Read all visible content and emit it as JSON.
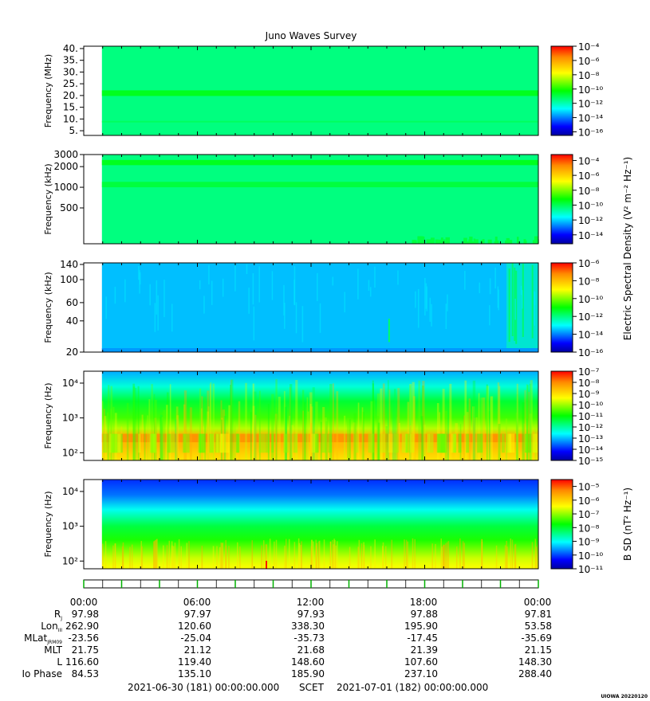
{
  "title": "Juno Waves Survey",
  "footer_left": "2021-06-30 (181) 00:00:00.000",
  "footer_mid": "SCET",
  "footer_right": "2021-07-01 (182) 00:00:00.000",
  "corner_label": "UIOWA 20220120",
  "spectral_density_label": "Electric Spectral Density (V² m⁻² Hz⁻¹)",
  "chart_data": [
    {
      "type": "heatmap",
      "name": "Panel 1 - high frequency receiver",
      "ylabel": "Frequency (MHz)",
      "yscale": "linear",
      "ylim": [
        3,
        41
      ],
      "yticks": [
        {
          "v": 40,
          "t": "40."
        },
        {
          "v": 35,
          "t": "35."
        },
        {
          "v": 30,
          "t": "30."
        },
        {
          "v": 25,
          "t": "25."
        },
        {
          "v": 20,
          "t": "20."
        },
        {
          "v": 15,
          "t": "15."
        },
        {
          "v": 10,
          "t": "10."
        },
        {
          "v": 5,
          "t": "5."
        }
      ],
      "colorbar": {
        "range_exp": [
          -16.5,
          -4
        ],
        "ticks": [
          {
            "e": -4,
            "t": "10⁻⁴"
          },
          {
            "e": -6,
            "t": "10⁻⁶"
          },
          {
            "e": -8,
            "t": "10⁻⁸"
          },
          {
            "e": -10,
            "t": "10⁻¹⁰"
          },
          {
            "e": -12,
            "t": "10⁻¹²"
          },
          {
            "e": -14,
            "t": "10⁻¹⁴"
          },
          {
            "e": -16,
            "t": "10⁻¹⁶"
          }
        ]
      },
      "data_start_fraction": 0.04,
      "features": [
        {
          "kind": "background",
          "level": 0.4
        },
        {
          "kind": "band",
          "from": 19.8,
          "to": 22.2,
          "level": 0.49
        },
        {
          "kind": "band",
          "from": 8.5,
          "to": 9.2,
          "level": 0.43
        }
      ]
    },
    {
      "type": "heatmap",
      "name": "Panel 2 - low frequency receiver high band",
      "ylabel": "Frequency (kHz)",
      "yscale": "log",
      "ylim": [
        150,
        3000
      ],
      "yticks": [
        {
          "v": 3000,
          "t": "3000"
        },
        {
          "v": 2000,
          "t": "2000"
        },
        {
          "v": 1000,
          "t": "1000"
        },
        {
          "v": 500,
          "t": "500"
        }
      ],
      "colorbar": {
        "range_exp": [
          -15.2,
          -3.2
        ],
        "label": "Electric Spectral Density",
        "ticks": [
          {
            "e": -4,
            "t": "10⁻⁴"
          },
          {
            "e": -6,
            "t": "10⁻⁶"
          },
          {
            "e": -8,
            "t": "10⁻⁸"
          },
          {
            "e": -10,
            "t": "10⁻¹⁰"
          },
          {
            "e": -12,
            "t": "10⁻¹²"
          },
          {
            "e": -14,
            "t": "10⁻¹⁴"
          }
        ]
      },
      "data_start_fraction": 0.04,
      "features": [
        {
          "kind": "background",
          "level": 0.4
        },
        {
          "kind": "band",
          "from": 2100,
          "to": 2500,
          "level": 0.49
        },
        {
          "kind": "band",
          "from": 1000,
          "to": 1200,
          "level": 0.46
        },
        {
          "kind": "floor_noise",
          "from": 150,
          "to": 200,
          "level": 0.45,
          "start": 0.72
        }
      ]
    },
    {
      "type": "heatmap",
      "name": "Panel 3 - low frequency receiver low band",
      "ylabel": "Frequency (kHz)",
      "yscale": "log",
      "ylim": [
        20,
        145
      ],
      "yticks": [
        {
          "v": 140,
          "t": "140"
        },
        {
          "v": 100,
          "t": "100"
        },
        {
          "v": 60,
          "t": "60"
        },
        {
          "v": 40,
          "t": "40"
        },
        {
          "v": 20,
          "t": "20"
        }
      ],
      "colorbar": {
        "range_exp": [
          -16,
          -6
        ],
        "ticks": [
          {
            "e": -6,
            "t": "10⁻⁶"
          },
          {
            "e": -8,
            "t": "10⁻⁸"
          },
          {
            "e": -10,
            "t": "10⁻¹⁰"
          },
          {
            "e": -12,
            "t": "10⁻¹²"
          },
          {
            "e": -14,
            "t": "10⁻¹⁴"
          },
          {
            "e": -16,
            "t": "10⁻¹⁶"
          }
        ]
      },
      "data_start_fraction": 0.04,
      "features": [
        {
          "kind": "background",
          "level": 0.25
        },
        {
          "kind": "bright_edge",
          "start": 0.93,
          "level": 0.36
        },
        {
          "kind": "spike",
          "at": 0.67,
          "from": 25,
          "to": 42,
          "level": 0.42
        }
      ]
    },
    {
      "type": "heatmap",
      "name": "Panel 4 - electric low frequency",
      "ylabel": "Frequency (Hz)",
      "yscale": "log",
      "ylim": [
        60,
        22000
      ],
      "yticks": [
        {
          "v": 10000,
          "t": "10⁴"
        },
        {
          "v": 1000,
          "t": "10³"
        },
        {
          "v": 100,
          "t": "10²"
        }
      ],
      "colorbar": {
        "range_exp": [
          -15,
          -7
        ],
        "ticks": [
          {
            "e": -7,
            "t": "10⁻⁷"
          },
          {
            "e": -8,
            "t": "10⁻⁸"
          },
          {
            "e": -9,
            "t": "10⁻⁹"
          },
          {
            "e": -10,
            "t": "10⁻¹⁰"
          },
          {
            "e": -11,
            "t": "10⁻¹¹"
          },
          {
            "e": -12,
            "t": "10⁻¹²"
          },
          {
            "e": -13,
            "t": "10⁻¹³"
          },
          {
            "e": -14,
            "t": "10⁻¹⁴"
          },
          {
            "e": -15,
            "t": "10⁻¹⁵"
          }
        ]
      },
      "data_start_fraction": 0.04,
      "features": [
        {
          "kind": "gradient",
          "stops": [
            [
              20000,
              0.24
            ],
            [
              8000,
              0.33
            ],
            [
              3000,
              0.46
            ],
            [
              1000,
              0.55
            ],
            [
              500,
              0.64
            ],
            [
              300,
              0.82
            ],
            [
              150,
              0.8
            ],
            [
              60,
              0.74
            ]
          ]
        },
        {
          "kind": "band",
          "from": 200,
          "to": 350,
          "level": 0.87
        }
      ]
    },
    {
      "type": "heatmap",
      "name": "Panel 5 - magnetic low frequency",
      "ylabel": "Frequency (Hz)",
      "yscale": "log",
      "ylim": [
        60,
        22000
      ],
      "yticks": [
        {
          "v": 10000,
          "t": "10⁴"
        },
        {
          "v": 1000,
          "t": "10³"
        },
        {
          "v": 100,
          "t": "10²"
        }
      ],
      "colorbar": {
        "range_exp": [
          -11,
          -4.5
        ],
        "label": "B SD (nT² Hz⁻¹)",
        "ticks": [
          {
            "e": -5,
            "t": "10⁻⁵"
          },
          {
            "e": -6,
            "t": "10⁻⁶"
          },
          {
            "e": -7,
            "t": "10⁻⁷"
          },
          {
            "e": -8,
            "t": "10⁻⁸"
          },
          {
            "e": -9,
            "t": "10⁻⁹"
          },
          {
            "e": -10,
            "t": "10⁻¹⁰"
          },
          {
            "e": -11,
            "t": "10⁻¹¹"
          }
        ]
      },
      "data_start_fraction": 0.04,
      "features": [
        {
          "kind": "gradient",
          "stops": [
            [
              20000,
              0.14
            ],
            [
              8000,
              0.19
            ],
            [
              3000,
              0.31
            ],
            [
              1000,
              0.45
            ],
            [
              400,
              0.52
            ],
            [
              200,
              0.6
            ],
            [
              120,
              0.66
            ],
            [
              60,
              0.7
            ]
          ]
        }
      ]
    }
  ],
  "ephemeris": {
    "time_ticks": [
      "00:00",
      "06:00",
      "12:00",
      "18:00",
      "00:00"
    ],
    "rows": [
      {
        "label": "R",
        "sub": "J",
        "values": [
          "97.98",
          "97.97",
          "97.93",
          "97.88",
          "97.81"
        ]
      },
      {
        "label": "Lon",
        "sub": "III",
        "values": [
          "262.90",
          "120.60",
          "338.30",
          "195.90",
          "53.58"
        ]
      },
      {
        "label": "MLat",
        "sub": "JRM09",
        "values": [
          "-23.56",
          "-25.04",
          "-35.73",
          "-17.45",
          "-35.69"
        ]
      },
      {
        "label": "MLT",
        "sub": "",
        "values": [
          "21.75",
          "21.12",
          "21.68",
          "21.39",
          "21.15"
        ]
      },
      {
        "label": "L",
        "sub": "",
        "values": [
          "116.60",
          "119.40",
          "148.60",
          "107.60",
          "148.30"
        ]
      },
      {
        "label": "Io Phase",
        "sub": "",
        "values": [
          "84.53",
          "135.10",
          "185.90",
          "237.10",
          "288.40"
        ]
      }
    ]
  }
}
